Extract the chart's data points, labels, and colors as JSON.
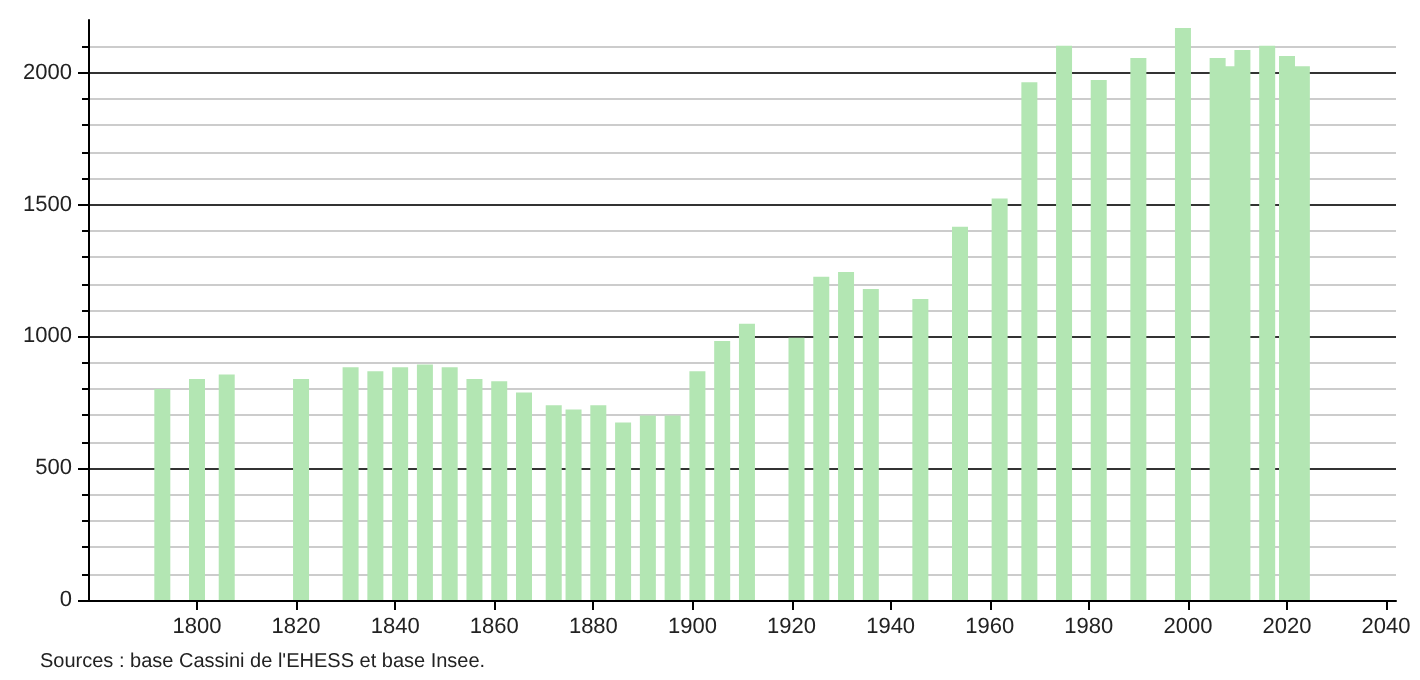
{
  "chart_data": {
    "type": "bar",
    "x": [
      1793,
      1800,
      1806,
      1821,
      1831,
      1836,
      1841,
      1846,
      1851,
      1856,
      1861,
      1866,
      1872,
      1876,
      1881,
      1886,
      1891,
      1896,
      1901,
      1906,
      1911,
      1921,
      1926,
      1931,
      1936,
      1946,
      1954,
      1962,
      1968,
      1975,
      1982,
      1990,
      1999,
      2006,
      2008,
      2011,
      2016,
      2020,
      2023
    ],
    "values": [
      800,
      838,
      855,
      838,
      883,
      868,
      883,
      893,
      883,
      838,
      830,
      787,
      739,
      723,
      739,
      673,
      700,
      700,
      868,
      982,
      1048,
      995,
      1226,
      1244,
      1180,
      1142,
      1416,
      1523,
      1964,
      2102,
      1972,
      2056,
      2170,
      2056,
      2025,
      2086,
      2102,
      2063,
      2025
    ],
    "color": "#b3e6b3",
    "xlim": [
      1778,
      2042
    ],
    "xticks": [
      1800,
      1820,
      1840,
      1860,
      1880,
      1900,
      1920,
      1940,
      1960,
      1980,
      2000,
      2020,
      2040
    ],
    "ylim": [
      0,
      2200
    ],
    "yticks": [
      0,
      500,
      1000,
      1500,
      2000
    ],
    "grid": "y",
    "annotations": [
      "Sources : base Cassini de l'EHESS et base Insee."
    ]
  }
}
